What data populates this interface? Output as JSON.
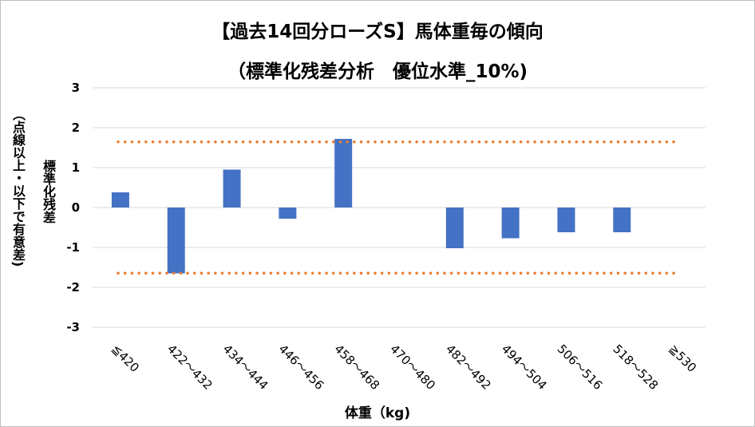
{
  "chart_data": {
    "type": "bar",
    "title": "【過去14回分ローズS】馬体重毎の傾向",
    "subtitle": "（標準化残差分析　優位水準_10%)",
    "xlabel": "体重（kg)",
    "ylabel": "標準化残差",
    "ylabel_note": "（点線以上・以下で有意差)",
    "ylim": [
      -3,
      3
    ],
    "yticks": [
      3,
      2,
      1,
      0,
      -1,
      -2,
      -3
    ],
    "categories": [
      "≦420",
      "422～432",
      "434～444",
      "446～456",
      "458～468",
      "470～480",
      "482～492",
      "494～504",
      "506～516",
      "518～528",
      "≧530"
    ],
    "values": [
      0.38,
      -1.65,
      0.95,
      -0.28,
      1.72,
      0,
      -1.02,
      -0.77,
      -0.62,
      -0.62,
      0
    ],
    "reference_lines": [
      1.645,
      -1.645
    ],
    "bar_color": "#4472C4",
    "reference_color": "#ED7D31",
    "grid": true
  }
}
